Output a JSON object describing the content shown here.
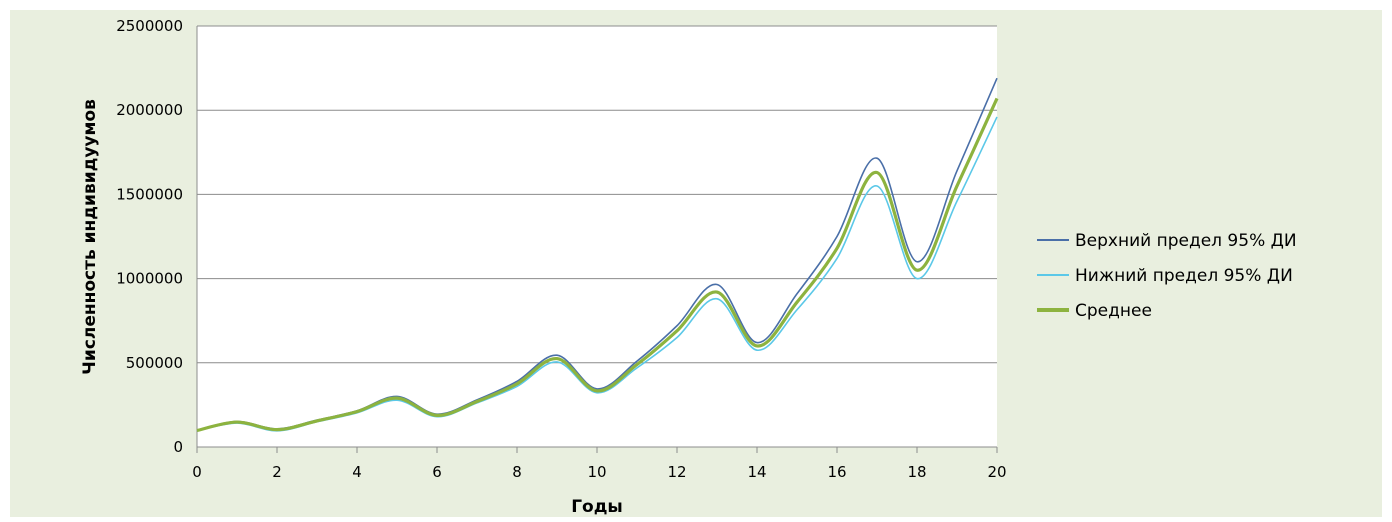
{
  "chart_data": {
    "type": "line",
    "title": "",
    "xlabel": "Годы",
    "ylabel": "Численность индивидуумов",
    "xlim": [
      0,
      20
    ],
    "ylim": [
      0,
      2500000
    ],
    "x_ticks": [
      "0",
      "2",
      "4",
      "6",
      "8",
      "10",
      "12",
      "14",
      "16",
      "18",
      "20"
    ],
    "y_ticks": [
      "0",
      "500000",
      "1000000",
      "1500000",
      "2000000",
      "2500000"
    ],
    "grid": "horizontal",
    "legend_position": "right",
    "x": [
      0,
      1,
      2,
      3,
      4,
      5,
      6,
      7,
      8,
      9,
      10,
      11,
      12,
      13,
      14,
      15,
      16,
      17,
      18,
      19,
      20
    ],
    "series": [
      {
        "name": "Верхний предел 95% ДИ",
        "color": "#4a6fa8",
        "values": [
          100000,
          152000,
          108000,
          160000,
          215000,
          300000,
          195000,
          280000,
          390000,
          545000,
          345000,
          510000,
          720000,
          965000,
          620000,
          910000,
          1250000,
          1715000,
          1100000,
          1640000,
          2190000
        ]
      },
      {
        "name": "Нижний предел 95% ДИ",
        "color": "#5bc8e8",
        "values": [
          96000,
          142000,
          96000,
          150000,
          203000,
          278000,
          180000,
          262000,
          360000,
          505000,
          322000,
          470000,
          650000,
          880000,
          575000,
          815000,
          1120000,
          1550000,
          1000000,
          1460000,
          1960000
        ]
      },
      {
        "name": "Среднее",
        "color": "#8db33f",
        "values": [
          98000,
          148000,
          103000,
          155000,
          210000,
          290000,
          188000,
          270000,
          375000,
          525000,
          333000,
          490000,
          690000,
          920000,
          600000,
          860000,
          1180000,
          1630000,
          1050000,
          1550000,
          2070000
        ]
      }
    ]
  }
}
